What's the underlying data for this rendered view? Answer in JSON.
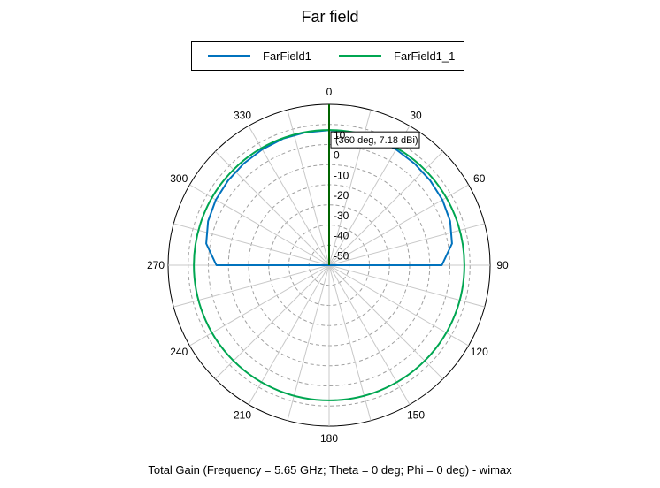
{
  "chart_data": {
    "type": "polar-line",
    "title": "Far field",
    "caption": "Total Gain (Frequency = 5.65 GHz; Theta = 0 deg; Phi = 0 deg) - wimax",
    "angle_ticks": [
      0,
      30,
      60,
      90,
      120,
      150,
      180,
      210,
      240,
      270,
      300,
      330
    ],
    "radial_ticks": [
      10,
      0,
      -10,
      -20,
      -30,
      -40,
      -50
    ],
    "radial_tick_labels": [
      "10",
      "0",
      "-10",
      "-20",
      "-30",
      "-40",
      "-50"
    ],
    "rlim": [
      -60,
      20
    ],
    "angle_direction": "clockwise",
    "zero_location": "top",
    "legend_position": "top",
    "series": [
      {
        "name": "FarField1",
        "color": "#0072BD",
        "theta": [
          90,
          80,
          70,
          60,
          50,
          40,
          30,
          20,
          10,
          0,
          350,
          340,
          330,
          320,
          310,
          300,
          290,
          280,
          270
        ],
        "r": [
          -4,
          2,
          4,
          5,
          5.5,
          6,
          6.5,
          7,
          7.1,
          7.18,
          7.1,
          7,
          6.5,
          6,
          5.5,
          5,
          4,
          2,
          -4
        ],
        "closed": false
      },
      {
        "name": "FarField1_1",
        "color": "#00A651",
        "theta": [
          0,
          15,
          30,
          45,
          60,
          75,
          90,
          105,
          120,
          135,
          150,
          165,
          180,
          195,
          210,
          225,
          240,
          255,
          270,
          285,
          300,
          315,
          330,
          345
        ],
        "r": [
          7.2,
          7.2,
          7.2,
          7.2,
          7.2,
          7.2,
          7.2,
          7.2,
          7.2,
          7.2,
          7.2,
          7.2,
          7.2,
          7.2,
          7.2,
          7.2,
          7.2,
          7.2,
          7.2,
          7.2,
          7.2,
          7.2,
          7.2,
          7.2
        ],
        "closed": true
      }
    ],
    "marker": {
      "theta": 0,
      "r": 7.18,
      "label": "(360 deg, 7.18 dBi)",
      "line_color": "#006400"
    }
  }
}
